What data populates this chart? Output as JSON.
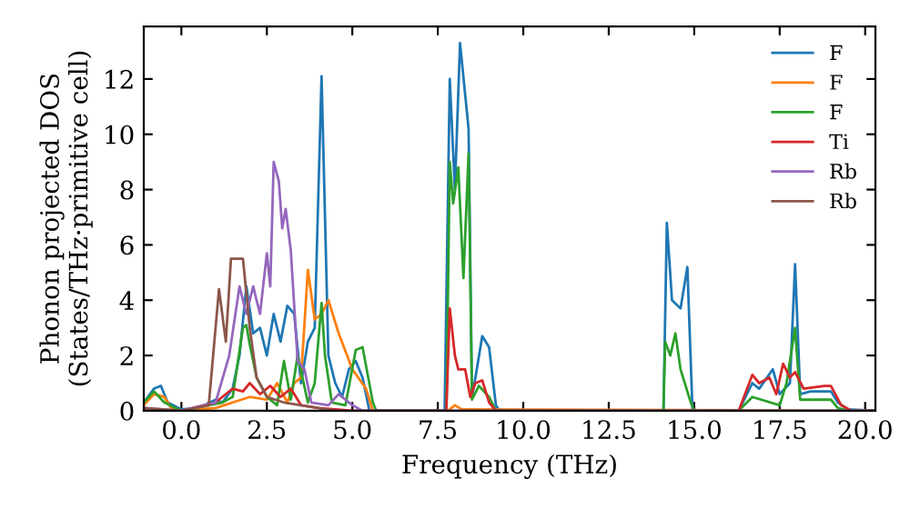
{
  "chart_data": {
    "type": "line",
    "xlabel": "Frequency (THz)",
    "ylabel": "Phonon projected DOS\n(States/THz·primitive cell)",
    "xlim": [
      -1.1,
      20.3
    ],
    "ylim": [
      0,
      13.9
    ],
    "xticks": [
      {
        "value": 0,
        "label": "0.0"
      },
      {
        "value": 2.5,
        "label": "2.5"
      },
      {
        "value": 5,
        "label": "5.0"
      },
      {
        "value": 7.5,
        "label": "7.5"
      },
      {
        "value": 10,
        "label": "10.0"
      },
      {
        "value": 12.5,
        "label": "12.5"
      },
      {
        "value": 15,
        "label": "15.0"
      },
      {
        "value": 17.5,
        "label": "17.5"
      },
      {
        "value": 20,
        "label": "20.0"
      }
    ],
    "yticks": [
      0,
      2,
      4,
      6,
      8,
      10,
      12
    ],
    "grid": false,
    "legend": "top right",
    "marker": "none",
    "line_style": "solid",
    "series": [
      {
        "name": "F",
        "color": "#1f77b4",
        "x": [
          -1.1,
          -0.8,
          -0.6,
          -0.4,
          0,
          0.5,
          1.0,
          1.2,
          1.5,
          1.7,
          1.9,
          2.1,
          2.3,
          2.5,
          2.7,
          2.9,
          3.1,
          3.3,
          3.5,
          3.7,
          3.9,
          4.1,
          4.3,
          4.5,
          4.7,
          4.9,
          5.1,
          5.3,
          5.5,
          7.7,
          7.85,
          8.0,
          8.15,
          8.4,
          8.5,
          8.6,
          8.8,
          9.0,
          9.2,
          9.3,
          14.1,
          14.2,
          14.35,
          14.6,
          14.8,
          14.95,
          16.3,
          16.7,
          16.9,
          17.3,
          17.5,
          17.8,
          17.95,
          18.1,
          18.4,
          19.0,
          19.2,
          19.5,
          20.3
        ],
        "values": [
          0.3,
          0.8,
          0.9,
          0.3,
          0.05,
          0.1,
          0.4,
          0.3,
          0.8,
          2.0,
          4.5,
          2.8,
          3.0,
          2.0,
          3.5,
          2.5,
          3.8,
          3.5,
          1.0,
          2.5,
          3.0,
          12.1,
          2.0,
          1.0,
          0.5,
          1.5,
          1.8,
          1.2,
          0,
          0,
          12.0,
          8.0,
          13.3,
          10.2,
          0.5,
          1.2,
          2.7,
          2.3,
          0.2,
          0,
          0,
          6.8,
          4.0,
          3.7,
          5.2,
          0,
          0,
          1.0,
          0.8,
          1.5,
          0.6,
          1.0,
          5.3,
          0.6,
          0.7,
          0.7,
          0.3,
          0.05,
          0
        ]
      },
      {
        "name": "F",
        "color": "#ff7f0e",
        "x": [
          -1.1,
          -0.8,
          -0.5,
          -0.3,
          0,
          1.0,
          1.5,
          2.0,
          2.5,
          2.8,
          3.1,
          3.3,
          3.5,
          3.7,
          3.9,
          4.1,
          4.3,
          4.6,
          5.0,
          5.4,
          5.6,
          7.8,
          8.0,
          8.2,
          20.3
        ],
        "values": [
          0.2,
          0.6,
          0.5,
          0.1,
          0,
          0.1,
          0.3,
          0.5,
          0.4,
          1.0,
          0.3,
          1.0,
          1.2,
          5.1,
          3.3,
          3.5,
          4.0,
          2.8,
          1.5,
          0.8,
          0,
          0,
          0.2,
          0.05,
          0
        ]
      },
      {
        "name": "F",
        "color": "#2ca02c",
        "x": [
          -1.1,
          -0.8,
          -0.5,
          0,
          1.2,
          1.5,
          1.8,
          1.9,
          2.0,
          2.2,
          2.5,
          2.8,
          3.0,
          3.2,
          3.4,
          3.7,
          3.9,
          4.1,
          4.2,
          4.4,
          4.8,
          5.1,
          5.3,
          5.6,
          5.7,
          7.75,
          7.85,
          7.95,
          8.1,
          8.25,
          8.4,
          8.5,
          8.7,
          9.0,
          9.2,
          14.1,
          14.15,
          14.3,
          14.45,
          14.6,
          14.9,
          15.0,
          16.3,
          16.7,
          17.5,
          17.7,
          17.95,
          18.1,
          19.0,
          19.2,
          19.5,
          20.3
        ],
        "values": [
          0.3,
          0.7,
          0.3,
          0,
          0.3,
          0.5,
          3.0,
          3.1,
          2.4,
          1.2,
          0.5,
          0.2,
          1.8,
          0.4,
          2.0,
          0.3,
          1.0,
          3.9,
          2.0,
          0.3,
          0.2,
          2.2,
          2.3,
          0.3,
          0,
          0,
          9.0,
          7.5,
          8.8,
          4.8,
          9.3,
          0.4,
          0.9,
          0.5,
          0,
          0,
          2.5,
          2.0,
          2.8,
          1.5,
          0.3,
          0,
          0,
          0.5,
          0.2,
          1.0,
          3.0,
          0.4,
          0.4,
          0.1,
          0,
          0
        ]
      },
      {
        "name": "Ti",
        "color": "#d62728",
        "x": [
          -1.1,
          0,
          1.0,
          1.5,
          1.8,
          2.0,
          2.3,
          2.6,
          2.9,
          3.2,
          3.5,
          4.0,
          5.0,
          7.75,
          7.85,
          8.0,
          8.1,
          8.3,
          8.45,
          8.6,
          8.8,
          9.0,
          9.2,
          16.3,
          16.7,
          16.9,
          17.2,
          17.4,
          17.6,
          17.8,
          17.95,
          18.2,
          18.8,
          19.0,
          19.3,
          19.6,
          20.3
        ],
        "values": [
          0.05,
          0,
          0.3,
          0.8,
          0.7,
          1.0,
          0.6,
          0.9,
          0.5,
          0.8,
          0.2,
          0.1,
          0,
          0,
          3.7,
          2.0,
          1.5,
          1.5,
          0.5,
          1.0,
          1.1,
          0.3,
          0,
          0,
          1.3,
          1.0,
          1.2,
          0.6,
          1.7,
          1.2,
          1.4,
          0.8,
          0.9,
          0.9,
          0.2,
          0,
          0
        ]
      },
      {
        "name": "Rb",
        "color": "#9467bd",
        "x": [
          -1.1,
          0,
          1.0,
          1.4,
          1.7,
          1.9,
          2.1,
          2.3,
          2.5,
          2.6,
          2.7,
          2.85,
          2.95,
          3.05,
          3.2,
          3.4,
          3.6,
          3.8,
          4.3,
          4.6,
          5.0,
          5.3,
          20.3
        ],
        "values": [
          0.1,
          0,
          0.3,
          2.0,
          4.5,
          3.5,
          4.5,
          3.5,
          5.7,
          4.5,
          9.0,
          8.3,
          6.6,
          7.3,
          5.8,
          1.8,
          1.5,
          0.3,
          0.2,
          0.6,
          0.2,
          0,
          0
        ]
      },
      {
        "name": "Rb",
        "color": "#8c564b",
        "x": [
          -1.1,
          0,
          0.8,
          1.1,
          1.3,
          1.45,
          1.8,
          2.0,
          2.2,
          2.5,
          3.0,
          3.5,
          4.0,
          4.5
        ],
        "values": [
          0.1,
          0,
          0.2,
          4.4,
          2.5,
          5.5,
          5.5,
          3.0,
          1.2,
          0.5,
          0.3,
          0.2,
          0.1,
          0
        ]
      }
    ]
  }
}
